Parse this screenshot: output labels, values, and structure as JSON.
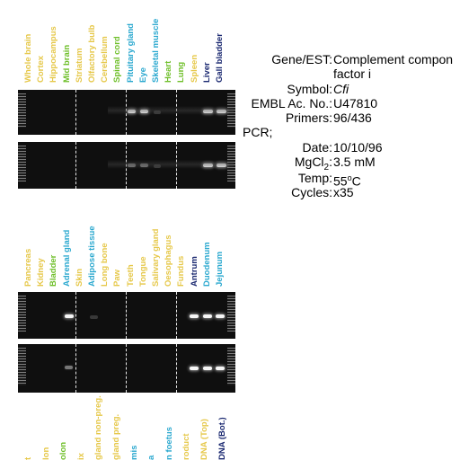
{
  "colors": {
    "yellow": "#e6c84a",
    "green": "#6fbf2a",
    "cyan": "#2aa8cf",
    "navy": "#1a2870",
    "gel_bg": "#0f0f0f",
    "band": "#f5f5f5"
  },
  "panel1": {
    "lanes": [
      {
        "label": "Whole brain",
        "color": "yellow"
      },
      {
        "label": "Cortex",
        "color": "yellow"
      },
      {
        "label": "Hippocampus",
        "color": "yellow"
      },
      {
        "label": "Mid brain",
        "color": "green"
      },
      {
        "label": "Striatum",
        "color": "yellow"
      },
      {
        "label": "Olfactory bulb",
        "color": "yellow"
      },
      {
        "label": "Cerebellum",
        "color": "yellow"
      },
      {
        "label": "Spinal cord",
        "color": "green"
      },
      {
        "label": "Pituitary gland",
        "color": "cyan"
      },
      {
        "label": "Eye",
        "color": "cyan"
      },
      {
        "label": "Skeletal muscle",
        "color": "cyan"
      },
      {
        "label": "Heart",
        "color": "green"
      },
      {
        "label": "Lung",
        "color": "green"
      },
      {
        "label": "Spleen",
        "color": "yellow"
      },
      {
        "label": "Liver",
        "color": "navy"
      },
      {
        "label": "Gall bladder",
        "color": "navy"
      }
    ]
  },
  "panel2": {
    "lanes": [
      {
        "label": "Pancreas",
        "color": "yellow"
      },
      {
        "label": "Kidney",
        "color": "yellow"
      },
      {
        "label": "Bladder",
        "color": "green"
      },
      {
        "label": "Adrenal gland",
        "color": "cyan"
      },
      {
        "label": "Skin",
        "color": "yellow"
      },
      {
        "label": "Adipose tissue",
        "color": "cyan"
      },
      {
        "label": "Long bone",
        "color": "yellow"
      },
      {
        "label": "Paw",
        "color": "yellow"
      },
      {
        "label": "Teeth",
        "color": "yellow"
      },
      {
        "label": "Tongue",
        "color": "yellow"
      },
      {
        "label": "Salivary gland",
        "color": "yellow"
      },
      {
        "label": "Oesophagus",
        "color": "yellow"
      },
      {
        "label": "Fundus",
        "color": "yellow"
      },
      {
        "label": "Antrum",
        "color": "navy"
      },
      {
        "label": "Duodenum",
        "color": "cyan"
      },
      {
        "label": "Jejunum",
        "color": "cyan"
      }
    ]
  },
  "panel3": {
    "lanes": [
      {
        "label": "t",
        "color": "yellow"
      },
      {
        "label": "lon",
        "color": "yellow"
      },
      {
        "label": "olon",
        "color": "green"
      },
      {
        "label": "ix",
        "color": "yellow"
      },
      {
        "label": "gland non-preg.",
        "color": "yellow"
      },
      {
        "label": "gland preg.",
        "color": "yellow"
      },
      {
        "label": "mis",
        "color": "cyan"
      },
      {
        "label": "a",
        "color": "cyan"
      },
      {
        "label": "n foetus",
        "color": "cyan"
      },
      {
        "label": "roduct",
        "color": "yellow"
      },
      {
        "label": "DNA (Top)",
        "color": "yellow"
      },
      {
        "label": "DNA (Bot.)",
        "color": "navy"
      }
    ]
  },
  "info": {
    "gene_label": "Gene/EST:",
    "gene_value_line1": "Complement compon",
    "gene_value_line2": "factor i",
    "symbol_label": "Symbol:",
    "symbol_value": "Cfi",
    "embl_label": "EMBL Ac. No.:",
    "embl_value": "U47810",
    "primers_label": "Primers:",
    "primers_value": "96/436",
    "pcr_label": "PCR;",
    "date_label": "Date:",
    "date_value": "10/10/96",
    "mgcl_label_main": "MgCl",
    "mgcl_label_sub": "2",
    "mgcl_label_colon": ":",
    "mgcl_value": "3.5 mM",
    "temp_label": "Temp:",
    "temp_value_num": "55",
    "temp_value_sup": "o",
    "temp_value_unit": "C",
    "cycles_label": "Cycles:",
    "cycles_value": "x35"
  }
}
